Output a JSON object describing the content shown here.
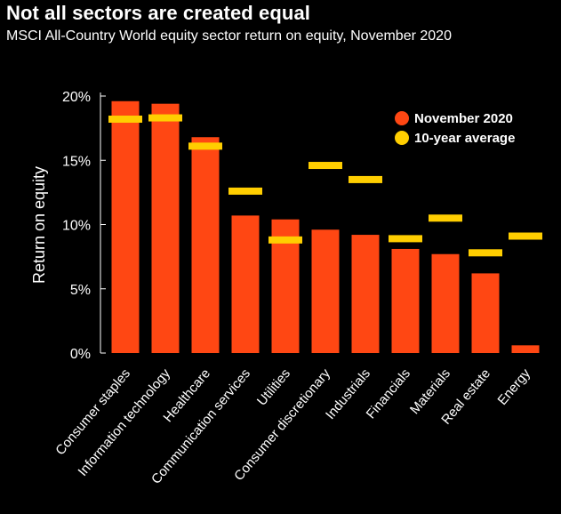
{
  "chart_data": {
    "type": "bar",
    "title": "Not all sectors are created equal",
    "subtitle": "MSCI All-Country World equity sector return on equity, November 2020",
    "ylabel": "Return on equity",
    "ylim": [
      0,
      20
    ],
    "yticks": [
      0,
      5,
      10,
      15,
      20
    ],
    "ytick_labels": [
      "0%",
      "5%",
      "10%",
      "15%",
      "20%"
    ],
    "categories": [
      "Consumer staples",
      "Information technology",
      "Healthcare",
      "Communication services",
      "Utilities",
      "Consumer discretionary",
      "Industrials",
      "Financials",
      "Materials",
      "Real estate",
      "Energy"
    ],
    "series": [
      {
        "name": "November 2020",
        "kind": "bar",
        "color": "#ff4713",
        "values": [
          19.6,
          19.4,
          16.8,
          10.7,
          10.4,
          9.6,
          9.2,
          8.1,
          7.7,
          6.2,
          0.6
        ]
      },
      {
        "name": "10-year average",
        "kind": "marker",
        "color": "#ffce00",
        "values": [
          18.2,
          18.3,
          16.1,
          12.6,
          8.8,
          14.6,
          13.5,
          8.9,
          10.5,
          7.8,
          9.1
        ]
      }
    ],
    "legend_position": "top-right",
    "grid": false
  }
}
